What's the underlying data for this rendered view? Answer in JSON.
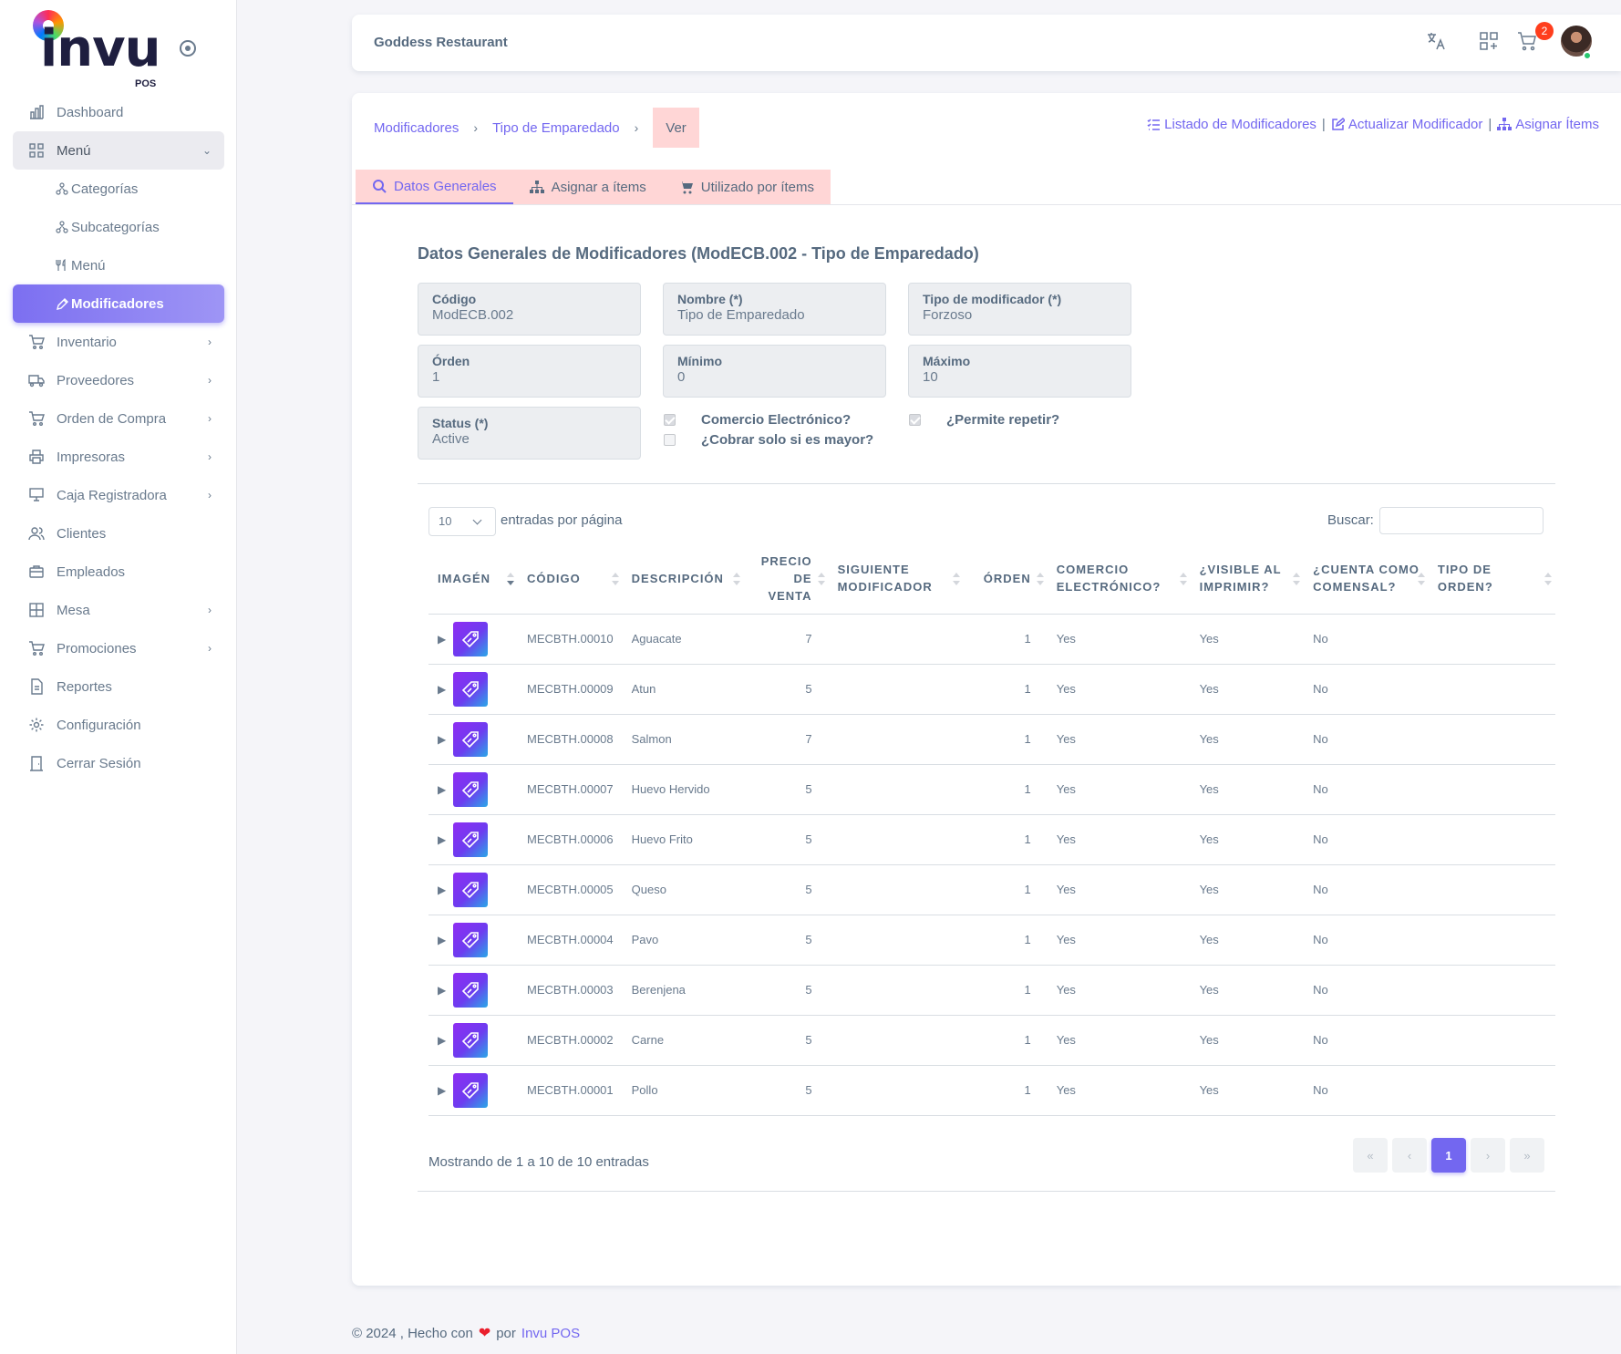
{
  "brand": {
    "logo_text": "invu",
    "logo_sub": "POS"
  },
  "sidebar": {
    "items": [
      {
        "label": "Dashboard",
        "icon": "chart-bar-icon",
        "chevron": ""
      },
      {
        "label": "Menú",
        "icon": "grid-icon",
        "chevron": "⌄"
      },
      {
        "label": "Categorías",
        "icon": "hierarchy-icon",
        "chevron": ""
      },
      {
        "label": "Subcategorías",
        "icon": "hierarchy-icon",
        "chevron": ""
      },
      {
        "label": "Menú",
        "icon": "utensils-icon",
        "chevron": ""
      },
      {
        "label": "Modificadores",
        "icon": "edit-tag-icon",
        "chevron": ""
      },
      {
        "label": "Inventario",
        "icon": "cart-icon",
        "chevron": "›"
      },
      {
        "label": "Proveedores",
        "icon": "truck-icon",
        "chevron": "›"
      },
      {
        "label": "Orden de Compra",
        "icon": "shopping-cart-icon",
        "chevron": "›"
      },
      {
        "label": "Impresoras",
        "icon": "printer-icon",
        "chevron": "›"
      },
      {
        "label": "Caja Registradora",
        "icon": "register-icon",
        "chevron": "›"
      },
      {
        "label": "Clientes",
        "icon": "users-icon",
        "chevron": ""
      },
      {
        "label": "Empleados",
        "icon": "briefcase-icon",
        "chevron": ""
      },
      {
        "label": "Mesa",
        "icon": "table-icon",
        "chevron": "›"
      },
      {
        "label": "Promociones",
        "icon": "shopping-cart-icon",
        "chevron": "›"
      },
      {
        "label": "Reportes",
        "icon": "document-icon",
        "chevron": ""
      },
      {
        "label": "Configuración",
        "icon": "gear-icon",
        "chevron": ""
      },
      {
        "label": "Cerrar Sesión",
        "icon": "door-icon",
        "chevron": ""
      }
    ]
  },
  "header": {
    "restaurant": "Goddess Restaurant",
    "cart_count": "2"
  },
  "breadcrumb": {
    "root": "Modificadores",
    "parent": "Tipo de Emparedado",
    "current": "Ver"
  },
  "actions": {
    "list": "Listado de Modificadores",
    "update": "Actualizar Modificador",
    "assign": "Asignar Ítems",
    "separator": "|"
  },
  "tabs": [
    "Datos Generales",
    "Asignar a ítems",
    "Utilizado por ítems"
  ],
  "section_title": "Datos Generales de Modificadores (ModECB.002 - Tipo de Emparedado)",
  "fields": {
    "codigo": {
      "label": "Código",
      "value": "ModECB.002"
    },
    "nombre": {
      "label": "Nombre (*)",
      "value": "Tipo de Emparedado"
    },
    "tipo": {
      "label": "Tipo de modificador (*)",
      "value": "Forzoso"
    },
    "orden": {
      "label": "Órden",
      "value": "1"
    },
    "minimo": {
      "label": "Mínimo",
      "value": "0"
    },
    "maximo": {
      "label": "Máximo",
      "value": "10"
    },
    "status": {
      "label": "Status (*)",
      "value": "Active"
    }
  },
  "checks": {
    "comercio": {
      "label": "Comercio Electrónico?",
      "checked": true
    },
    "cobrar": {
      "label": "¿Cobrar solo si es mayor?",
      "checked": false
    },
    "repetir": {
      "label": "¿Permite repetir?",
      "checked": true
    }
  },
  "table": {
    "length_value": "10",
    "length_label": "entradas por página",
    "search_label": "Buscar:",
    "columns": [
      "Imagén",
      "Código",
      "Descripción",
      "Precio de venta",
      "Siguiente modificador",
      "Órden",
      "Comercio electrónico?",
      "¿Visible al imprimir?",
      "¿Cuenta como comensal?",
      "Tipo de orden?"
    ],
    "rows": [
      {
        "code": "MECBTH.00010",
        "desc": "Aguacate",
        "price": "7",
        "next": "",
        "order": "1",
        "ecom": "Yes",
        "visible": "Yes",
        "diner": "No",
        "type": ""
      },
      {
        "code": "MECBTH.00009",
        "desc": "Atun",
        "price": "5",
        "next": "",
        "order": "1",
        "ecom": "Yes",
        "visible": "Yes",
        "diner": "No",
        "type": ""
      },
      {
        "code": "MECBTH.00008",
        "desc": "Salmon",
        "price": "7",
        "next": "",
        "order": "1",
        "ecom": "Yes",
        "visible": "Yes",
        "diner": "No",
        "type": ""
      },
      {
        "code": "MECBTH.00007",
        "desc": "Huevo Hervido",
        "price": "5",
        "next": "",
        "order": "1",
        "ecom": "Yes",
        "visible": "Yes",
        "diner": "No",
        "type": ""
      },
      {
        "code": "MECBTH.00006",
        "desc": "Huevo Frito",
        "price": "5",
        "next": "",
        "order": "1",
        "ecom": "Yes",
        "visible": "Yes",
        "diner": "No",
        "type": ""
      },
      {
        "code": "MECBTH.00005",
        "desc": "Queso",
        "price": "5",
        "next": "",
        "order": "1",
        "ecom": "Yes",
        "visible": "Yes",
        "diner": "No",
        "type": ""
      },
      {
        "code": "MECBTH.00004",
        "desc": "Pavo",
        "price": "5",
        "next": "",
        "order": "1",
        "ecom": "Yes",
        "visible": "Yes",
        "diner": "No",
        "type": ""
      },
      {
        "code": "MECBTH.00003",
        "desc": "Berenjena",
        "price": "5",
        "next": "",
        "order": "1",
        "ecom": "Yes",
        "visible": "Yes",
        "diner": "No",
        "type": ""
      },
      {
        "code": "MECBTH.00002",
        "desc": "Carne",
        "price": "5",
        "next": "",
        "order": "1",
        "ecom": "Yes",
        "visible": "Yes",
        "diner": "No",
        "type": ""
      },
      {
        "code": "MECBTH.00001",
        "desc": "Pollo",
        "price": "5",
        "next": "",
        "order": "1",
        "ecom": "Yes",
        "visible": "Yes",
        "diner": "No",
        "type": ""
      }
    ],
    "info": "Mostrando de 1 a 10 de 10 entradas",
    "pager": {
      "first": "«",
      "prev": "‹",
      "current": "1",
      "next": "›",
      "last": "»"
    }
  },
  "footer": {
    "prefix": "© 2024 , Hecho con",
    "by": "por",
    "link": "Invu POS"
  },
  "colors": {
    "accent": "#7367f0",
    "highlight": "#ffd6d6",
    "heart": "#ea1f2d"
  }
}
